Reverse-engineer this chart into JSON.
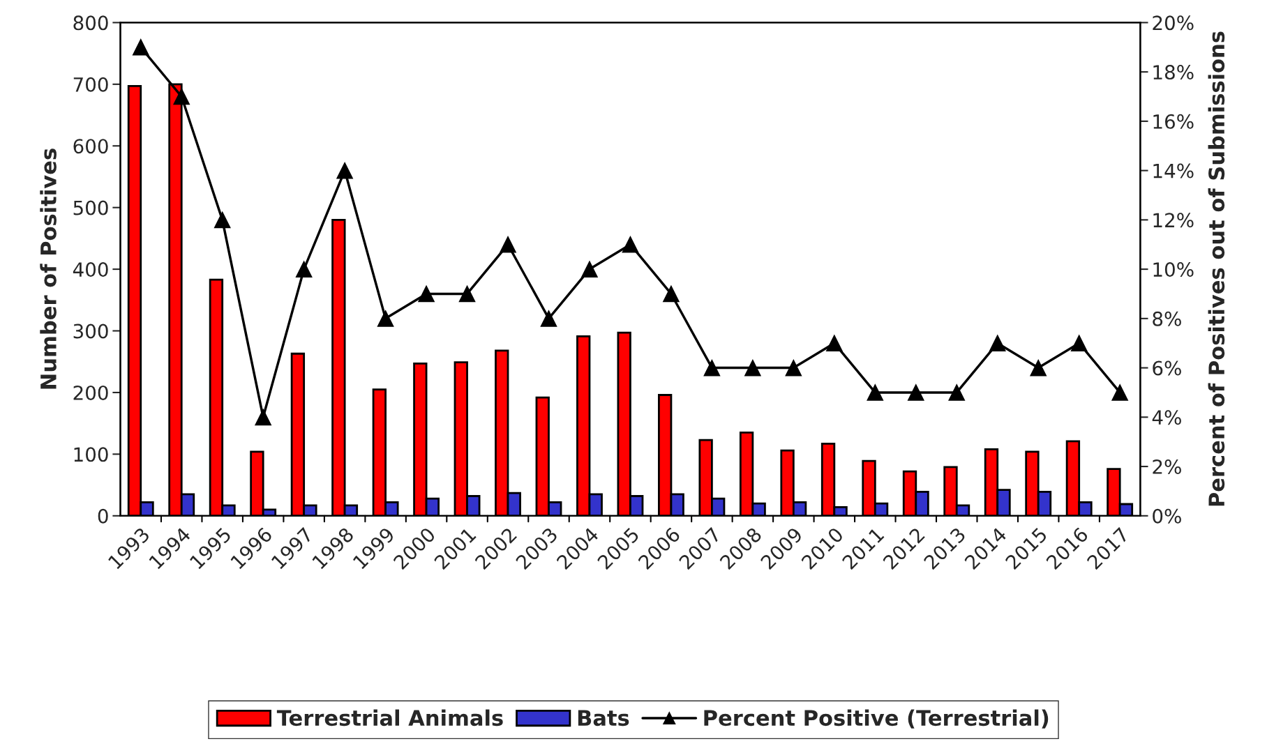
{
  "chart_data": {
    "type": "bar",
    "categories": [
      "1993",
      "1994",
      "1995",
      "1996",
      "1997",
      "1998",
      "1999",
      "2000",
      "2001",
      "2002",
      "2003",
      "2004",
      "2005",
      "2006",
      "2007",
      "2008",
      "2009",
      "2010",
      "2011",
      "2012",
      "2013",
      "2014",
      "2015",
      "2016",
      "2017"
    ],
    "series": [
      {
        "name": "Terrestrial Animals",
        "color": "#ff0000",
        "values": [
          697,
          700,
          383,
          104,
          263,
          480,
          205,
          247,
          249,
          268,
          192,
          291,
          297,
          196,
          123,
          135,
          106,
          117,
          89,
          72,
          79,
          108,
          104,
          121,
          76
        ]
      },
      {
        "name": "Bats",
        "color": "#3333cc",
        "values": [
          22,
          35,
          17,
          10,
          17,
          17,
          22,
          28,
          32,
          37,
          22,
          35,
          32,
          35,
          28,
          20,
          22,
          14,
          20,
          39,
          17,
          42,
          39,
          22,
          19
        ]
      },
      {
        "name": "Percent Positive (Terrestrial)",
        "type": "line",
        "axis": "y2",
        "color": "#000000",
        "marker": "triangle",
        "values": [
          19,
          17,
          12,
          4,
          10,
          14,
          8,
          9,
          9,
          11,
          8,
          10,
          11,
          9,
          6,
          6,
          6,
          7,
          5,
          5,
          5,
          7,
          6,
          7,
          5
        ]
      }
    ],
    "ylabel": "Number of Positives",
    "y2label": "Percent of Positives out of Submissions",
    "ylim": [
      0,
      800
    ],
    "yticks": [
      0,
      100,
      200,
      300,
      400,
      500,
      600,
      700,
      800
    ],
    "y2lim": [
      0,
      20
    ],
    "y2ticks": [
      {
        "value": 0,
        "label": "0%"
      },
      {
        "value": 2,
        "label": "2%"
      },
      {
        "value": 4,
        "label": "4%"
      },
      {
        "value": 6,
        "label": "6%"
      },
      {
        "value": 8,
        "label": "8%"
      },
      {
        "value": 10,
        "label": "10%"
      },
      {
        "value": 12,
        "label": "12%"
      },
      {
        "value": 14,
        "label": "14%"
      },
      {
        "value": 16,
        "label": "16%"
      },
      {
        "value": 18,
        "label": "18%"
      },
      {
        "value": 20,
        "label": "20%"
      }
    ],
    "grid": false,
    "legend": "bottom"
  }
}
